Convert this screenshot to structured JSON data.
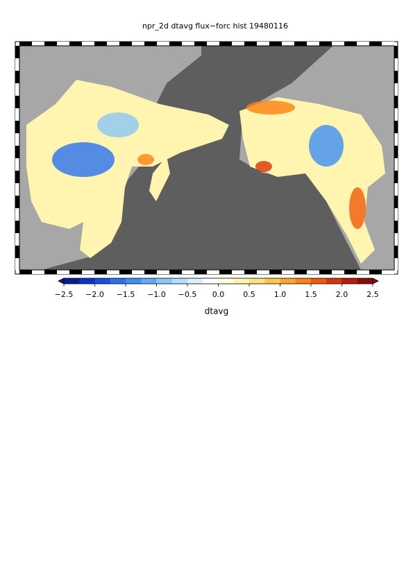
{
  "chart_data": {
    "type": "colormap",
    "title": "npr_2d dtavg flux−forc hist 19480116",
    "colorbar": {
      "label": "dtavg",
      "clim": [
        -2.5,
        2.5
      ],
      "ticks": [
        {
          "value": -2.5,
          "label": "−2.5"
        },
        {
          "value": -2,
          "label": "−2.0"
        },
        {
          "value": -1.5,
          "label": "−1.5"
        },
        {
          "value": -1,
          "label": "−1.0"
        },
        {
          "value": -0.5,
          "label": "−0.5"
        },
        {
          "value": 0,
          "label": "0.0"
        },
        {
          "value": 0.5,
          "label": "0.5"
        },
        {
          "value": 1,
          "label": "1.0"
        },
        {
          "value": 1.5,
          "label": "1.5"
        },
        {
          "value": 2,
          "label": "2.0"
        },
        2.5
      ],
      "colors": [
        "#0a1f8f",
        "#0d34c4",
        "#1450e6",
        "#2a70f0",
        "#3f8ef5",
        "#62aaf7",
        "#8cc6f8",
        "#b5dcf8",
        "#dceefa",
        "#ffffff",
        "#ffffe0",
        "#fff3a8",
        "#ffe27a",
        "#ffc74a",
        "#ffa62a",
        "#ff7f14",
        "#f05a0a",
        "#d93508",
        "#b81a0a",
        "#8c0a0a"
      ]
    }
  }
}
